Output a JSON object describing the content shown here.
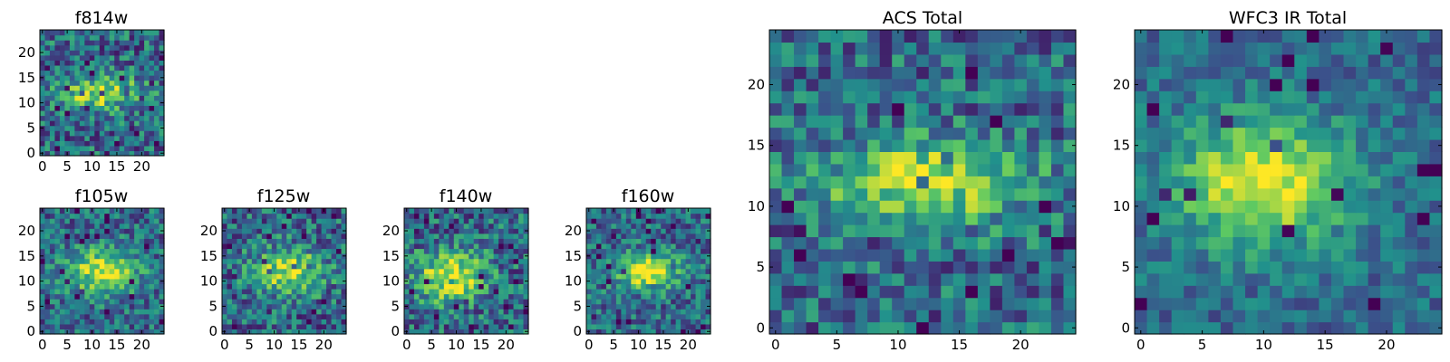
{
  "chart_data": [
    {
      "id": "f814w",
      "type": "heatmap",
      "title": "f814w",
      "grid_size": 25,
      "seed": 814,
      "blob": {
        "center": [
          12,
          12
        ],
        "sigma": [
          6,
          2.2
        ],
        "amp": 0.55
      },
      "noise": 0.35,
      "xticks": [
        0,
        5,
        10,
        15,
        20
      ],
      "yticks": [
        0,
        5,
        10,
        15,
        20
      ],
      "xlim": [
        0,
        25
      ],
      "ylim": [
        0,
        25
      ],
      "colormap": "viridis"
    },
    {
      "id": "f105w",
      "type": "heatmap",
      "title": "f105w",
      "grid_size": 25,
      "seed": 105,
      "blob": {
        "center": [
          12,
          12
        ],
        "sigma": [
          5,
          3
        ],
        "amp": 0.6
      },
      "noise": 0.3,
      "xticks": [
        0,
        5,
        10,
        15,
        20
      ],
      "yticks": [
        0,
        5,
        10,
        15,
        20
      ],
      "xlim": [
        0,
        25
      ],
      "ylim": [
        0,
        25
      ],
      "colormap": "viridis"
    },
    {
      "id": "f125w",
      "type": "heatmap",
      "title": "f125w",
      "grid_size": 25,
      "seed": 125,
      "blob": {
        "center": [
          13,
          12
        ],
        "sigma": [
          5,
          3
        ],
        "amp": 0.55
      },
      "noise": 0.35,
      "xticks": [
        0,
        5,
        10,
        15,
        20
      ],
      "yticks": [
        0,
        5,
        10,
        15,
        20
      ],
      "xlim": [
        0,
        25
      ],
      "ylim": [
        0,
        25
      ],
      "colormap": "viridis"
    },
    {
      "id": "f140w",
      "type": "heatmap",
      "title": "f140w",
      "grid_size": 25,
      "seed": 140,
      "blob": {
        "center": [
          9,
          11
        ],
        "sigma": [
          5,
          3.5
        ],
        "amp": 0.6
      },
      "noise": 0.35,
      "xticks": [
        0,
        5,
        10,
        15,
        20
      ],
      "yticks": [
        0,
        5,
        10,
        15,
        20
      ],
      "xlim": [
        0,
        25
      ],
      "ylim": [
        0,
        25
      ],
      "colormap": "viridis"
    },
    {
      "id": "f160w",
      "type": "heatmap",
      "title": "f160w",
      "grid_size": 25,
      "seed": 160,
      "blob": {
        "center": [
          12,
          12
        ],
        "sigma": [
          4.5,
          2.5
        ],
        "amp": 0.65
      },
      "noise": 0.3,
      "xticks": [
        0,
        5,
        10,
        15,
        20
      ],
      "yticks": [
        0,
        5,
        10,
        15,
        20
      ],
      "xlim": [
        0,
        25
      ],
      "ylim": [
        0,
        25
      ],
      "colormap": "viridis"
    },
    {
      "id": "acs-total",
      "type": "heatmap",
      "title": "ACS Total",
      "grid_size": 25,
      "seed": 99,
      "blob": {
        "center": [
          12,
          12
        ],
        "sigma": [
          6,
          2.5
        ],
        "amp": 0.55
      },
      "noise": 0.32,
      "xticks": [
        0,
        5,
        10,
        15,
        20
      ],
      "yticks": [
        0,
        5,
        10,
        15,
        20
      ],
      "xlim": [
        0,
        25
      ],
      "ylim": [
        0,
        25
      ],
      "colormap": "viridis"
    },
    {
      "id": "wfc3-ir-total",
      "type": "heatmap",
      "title": "WFC3 IR Total",
      "grid_size": 25,
      "seed": 333,
      "blob": {
        "center": [
          10,
          12
        ],
        "sigma": [
          5,
          3.5
        ],
        "amp": 0.65
      },
      "noise": 0.2,
      "xticks": [
        0,
        5,
        10,
        15,
        20
      ],
      "yticks": [
        0,
        5,
        10,
        15,
        20
      ],
      "xlim": [
        0,
        25
      ],
      "ylim": [
        0,
        25
      ],
      "colormap": "viridis"
    }
  ],
  "colors": {
    "viridis": [
      "#440154",
      "#3b528b",
      "#21918c",
      "#5ec962",
      "#fde725"
    ],
    "axis": "#000000",
    "background": "#ffffff"
  }
}
